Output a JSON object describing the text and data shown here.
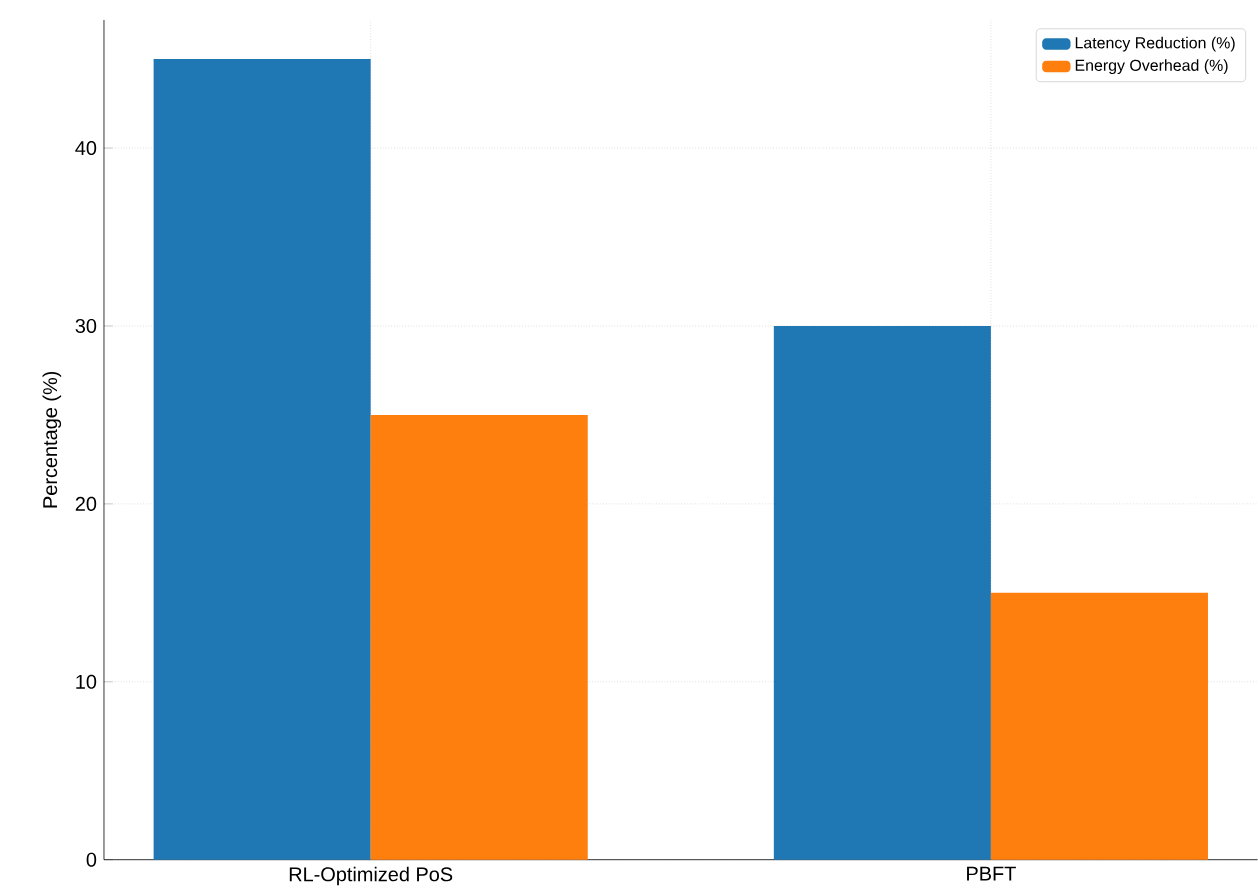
{
  "chart_data": {
    "type": "bar",
    "ylabel": "Percentage (%)",
    "categories": [
      "RL-Optimized PoS",
      "PBFT"
    ],
    "series": [
      {
        "name": "Latency Reduction (%)",
        "color": "#1f77b4",
        "values": [
          45,
          30
        ]
      },
      {
        "name": "Energy Overhead (%)",
        "color": "#ff7f0e",
        "values": [
          25,
          15
        ]
      }
    ],
    "ylim": [
      0,
      47.2
    ],
    "yticks": [
      0,
      10,
      20,
      30,
      40
    ],
    "grid": true,
    "legend": "top right"
  }
}
